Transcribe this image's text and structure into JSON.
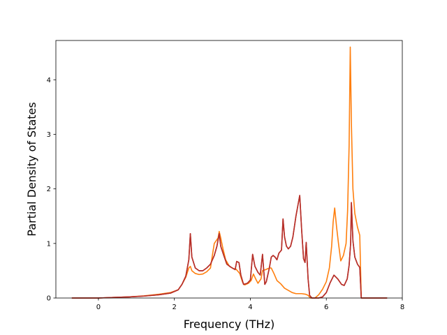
{
  "chart_data": {
    "type": "line",
    "title": "",
    "xlabel": "Frequency (THz)",
    "ylabel": "Partial Density of States",
    "xlim": [
      -1.12,
      8.0
    ],
    "ylim": [
      0,
      4.72
    ],
    "xticks": [
      0,
      2,
      4,
      6,
      8
    ],
    "yticks": [
      0,
      1,
      2,
      3,
      4
    ],
    "grid": false,
    "legend": "none",
    "series": [
      {
        "color": "#ff7f0e",
        "points": [
          [
            -0.7,
            0
          ],
          [
            0.0,
            0
          ],
          [
            0.4,
            0.01
          ],
          [
            0.8,
            0.02
          ],
          [
            1.2,
            0.04
          ],
          [
            1.6,
            0.07
          ],
          [
            1.9,
            0.1
          ],
          [
            2.1,
            0.15
          ],
          [
            2.2,
            0.25
          ],
          [
            2.3,
            0.38
          ],
          [
            2.38,
            0.55
          ],
          [
            2.42,
            0.58
          ],
          [
            2.46,
            0.5
          ],
          [
            2.55,
            0.45
          ],
          [
            2.65,
            0.43
          ],
          [
            2.75,
            0.44
          ],
          [
            2.85,
            0.48
          ],
          [
            2.95,
            0.55
          ],
          [
            3.0,
            0.78
          ],
          [
            3.05,
            1.0
          ],
          [
            3.1,
            1.05
          ],
          [
            3.15,
            1.1
          ],
          [
            3.18,
            1.22
          ],
          [
            3.22,
            1.1
          ],
          [
            3.28,
            0.9
          ],
          [
            3.35,
            0.7
          ],
          [
            3.45,
            0.58
          ],
          [
            3.55,
            0.54
          ],
          [
            3.62,
            0.53
          ],
          [
            3.66,
            0.5
          ],
          [
            3.72,
            0.45
          ],
          [
            3.8,
            0.28
          ],
          [
            3.85,
            0.24
          ],
          [
            3.95,
            0.27
          ],
          [
            4.02,
            0.32
          ],
          [
            4.08,
            0.44
          ],
          [
            4.14,
            0.35
          ],
          [
            4.2,
            0.27
          ],
          [
            4.28,
            0.35
          ],
          [
            4.32,
            0.5
          ],
          [
            4.4,
            0.52
          ],
          [
            4.5,
            0.55
          ],
          [
            4.55,
            0.55
          ],
          [
            4.62,
            0.45
          ],
          [
            4.7,
            0.32
          ],
          [
            4.8,
            0.26
          ],
          [
            4.9,
            0.18
          ],
          [
            5.0,
            0.14
          ],
          [
            5.1,
            0.1
          ],
          [
            5.2,
            0.08
          ],
          [
            5.35,
            0.08
          ],
          [
            5.45,
            0.07
          ],
          [
            5.52,
            0.05
          ],
          [
            5.58,
            0.0
          ],
          [
            5.7,
            0.0
          ],
          [
            5.8,
            0.06
          ],
          [
            5.9,
            0.16
          ],
          [
            6.0,
            0.3
          ],
          [
            6.08,
            0.55
          ],
          [
            6.14,
            0.95
          ],
          [
            6.18,
            1.4
          ],
          [
            6.22,
            1.65
          ],
          [
            6.27,
            1.3
          ],
          [
            6.32,
            1.0
          ],
          [
            6.38,
            0.68
          ],
          [
            6.45,
            0.78
          ],
          [
            6.52,
            1.0
          ],
          [
            6.56,
            1.6
          ],
          [
            6.6,
            2.8
          ],
          [
            6.63,
            4.6
          ],
          [
            6.66,
            3.2
          ],
          [
            6.7,
            2.0
          ],
          [
            6.75,
            1.55
          ],
          [
            6.82,
            1.3
          ],
          [
            6.88,
            1.15
          ],
          [
            6.92,
            0.0
          ],
          [
            7.0,
            0
          ],
          [
            7.6,
            0
          ]
        ]
      },
      {
        "color": "#d62728",
        "points": [
          [
            -0.7,
            0
          ],
          [
            0.0,
            0
          ],
          [
            0.4,
            0.01
          ],
          [
            0.8,
            0.02
          ],
          [
            1.2,
            0.035
          ],
          [
            1.6,
            0.06
          ],
          [
            1.9,
            0.09
          ],
          [
            2.1,
            0.15
          ],
          [
            2.2,
            0.25
          ],
          [
            2.3,
            0.4
          ],
          [
            2.38,
            0.7
          ],
          [
            2.42,
            1.18
          ],
          [
            2.46,
            0.75
          ],
          [
            2.55,
            0.55
          ],
          [
            2.65,
            0.5
          ],
          [
            2.75,
            0.5
          ],
          [
            2.85,
            0.55
          ],
          [
            2.95,
            0.62
          ],
          [
            3.05,
            0.78
          ],
          [
            3.12,
            0.95
          ],
          [
            3.18,
            1.18
          ],
          [
            3.22,
            0.95
          ],
          [
            3.3,
            0.78
          ],
          [
            3.38,
            0.62
          ],
          [
            3.5,
            0.56
          ],
          [
            3.6,
            0.52
          ],
          [
            3.64,
            0.67
          ],
          [
            3.7,
            0.65
          ],
          [
            3.75,
            0.42
          ],
          [
            3.82,
            0.25
          ],
          [
            3.92,
            0.27
          ],
          [
            4.0,
            0.33
          ],
          [
            4.06,
            0.8
          ],
          [
            4.12,
            0.58
          ],
          [
            4.2,
            0.47
          ],
          [
            4.26,
            0.42
          ],
          [
            4.32,
            0.8
          ],
          [
            4.38,
            0.25
          ],
          [
            4.42,
            0.3
          ],
          [
            4.5,
            0.55
          ],
          [
            4.55,
            0.75
          ],
          [
            4.6,
            0.78
          ],
          [
            4.65,
            0.75
          ],
          [
            4.7,
            0.7
          ],
          [
            4.75,
            0.82
          ],
          [
            4.82,
            0.88
          ],
          [
            4.86,
            1.45
          ],
          [
            4.9,
            1.12
          ],
          [
            4.95,
            0.95
          ],
          [
            5.0,
            0.9
          ],
          [
            5.06,
            0.95
          ],
          [
            5.12,
            1.12
          ],
          [
            5.2,
            1.5
          ],
          [
            5.3,
            1.88
          ],
          [
            5.35,
            1.25
          ],
          [
            5.4,
            0.72
          ],
          [
            5.44,
            0.65
          ],
          [
            5.47,
            1.02
          ],
          [
            5.52,
            0.35
          ],
          [
            5.56,
            0.05
          ],
          [
            5.62,
            0.0
          ],
          [
            5.7,
            0.0
          ],
          [
            5.8,
            0.0
          ],
          [
            5.9,
            0.02
          ],
          [
            6.0,
            0.1
          ],
          [
            6.1,
            0.28
          ],
          [
            6.2,
            0.42
          ],
          [
            6.3,
            0.35
          ],
          [
            6.4,
            0.25
          ],
          [
            6.47,
            0.23
          ],
          [
            6.55,
            0.35
          ],
          [
            6.6,
            0.6
          ],
          [
            6.64,
            1.0
          ],
          [
            6.66,
            1.75
          ],
          [
            6.7,
            1.05
          ],
          [
            6.75,
            0.75
          ],
          [
            6.82,
            0.62
          ],
          [
            6.88,
            0.56
          ],
          [
            6.92,
            0.0
          ],
          [
            7.0,
            0
          ],
          [
            7.6,
            0
          ]
        ]
      },
      {
        "color": "#b5312a",
        "points": [
          [
            -0.7,
            0
          ],
          [
            0.0,
            0
          ],
          [
            0.4,
            0.01
          ],
          [
            0.8,
            0.02
          ],
          [
            1.2,
            0.035
          ],
          [
            1.6,
            0.06
          ],
          [
            1.9,
            0.09
          ],
          [
            2.1,
            0.15
          ],
          [
            2.2,
            0.25
          ],
          [
            2.3,
            0.4
          ],
          [
            2.38,
            0.7
          ],
          [
            2.42,
            1.18
          ],
          [
            2.46,
            0.75
          ],
          [
            2.55,
            0.55
          ],
          [
            2.65,
            0.5
          ],
          [
            2.75,
            0.5
          ],
          [
            2.85,
            0.55
          ],
          [
            2.95,
            0.62
          ],
          [
            3.05,
            0.78
          ],
          [
            3.12,
            0.95
          ],
          [
            3.18,
            1.18
          ],
          [
            3.22,
            0.95
          ],
          [
            3.3,
            0.78
          ],
          [
            3.38,
            0.62
          ],
          [
            3.5,
            0.56
          ],
          [
            3.6,
            0.52
          ],
          [
            3.64,
            0.67
          ],
          [
            3.7,
            0.65
          ],
          [
            3.75,
            0.42
          ],
          [
            3.82,
            0.25
          ],
          [
            3.92,
            0.27
          ],
          [
            4.0,
            0.33
          ],
          [
            4.06,
            0.8
          ],
          [
            4.12,
            0.58
          ],
          [
            4.2,
            0.47
          ],
          [
            4.26,
            0.42
          ],
          [
            4.32,
            0.8
          ],
          [
            4.38,
            0.25
          ],
          [
            4.42,
            0.3
          ],
          [
            4.5,
            0.55
          ],
          [
            4.55,
            0.75
          ],
          [
            4.6,
            0.78
          ],
          [
            4.65,
            0.75
          ],
          [
            4.7,
            0.7
          ],
          [
            4.75,
            0.82
          ],
          [
            4.82,
            0.88
          ],
          [
            4.86,
            1.45
          ],
          [
            4.9,
            1.12
          ],
          [
            4.95,
            0.95
          ],
          [
            5.0,
            0.9
          ],
          [
            5.06,
            0.95
          ],
          [
            5.12,
            1.12
          ],
          [
            5.2,
            1.5
          ],
          [
            5.3,
            1.88
          ],
          [
            5.35,
            1.25
          ],
          [
            5.4,
            0.72
          ],
          [
            5.44,
            0.65
          ],
          [
            5.47,
            1.02
          ],
          [
            5.52,
            0.35
          ],
          [
            5.56,
            0.05
          ],
          [
            5.62,
            0.0
          ],
          [
            5.7,
            0.0
          ],
          [
            5.8,
            0.0
          ],
          [
            5.9,
            0.02
          ],
          [
            6.0,
            0.1
          ],
          [
            6.1,
            0.28
          ],
          [
            6.2,
            0.42
          ],
          [
            6.3,
            0.35
          ],
          [
            6.4,
            0.25
          ],
          [
            6.47,
            0.23
          ],
          [
            6.55,
            0.35
          ],
          [
            6.6,
            0.6
          ],
          [
            6.64,
            1.0
          ],
          [
            6.66,
            1.75
          ],
          [
            6.7,
            1.05
          ],
          [
            6.75,
            0.75
          ],
          [
            6.82,
            0.62
          ],
          [
            6.88,
            0.56
          ],
          [
            6.92,
            0.0
          ],
          [
            7.0,
            0
          ],
          [
            7.6,
            0
          ]
        ]
      }
    ]
  }
}
